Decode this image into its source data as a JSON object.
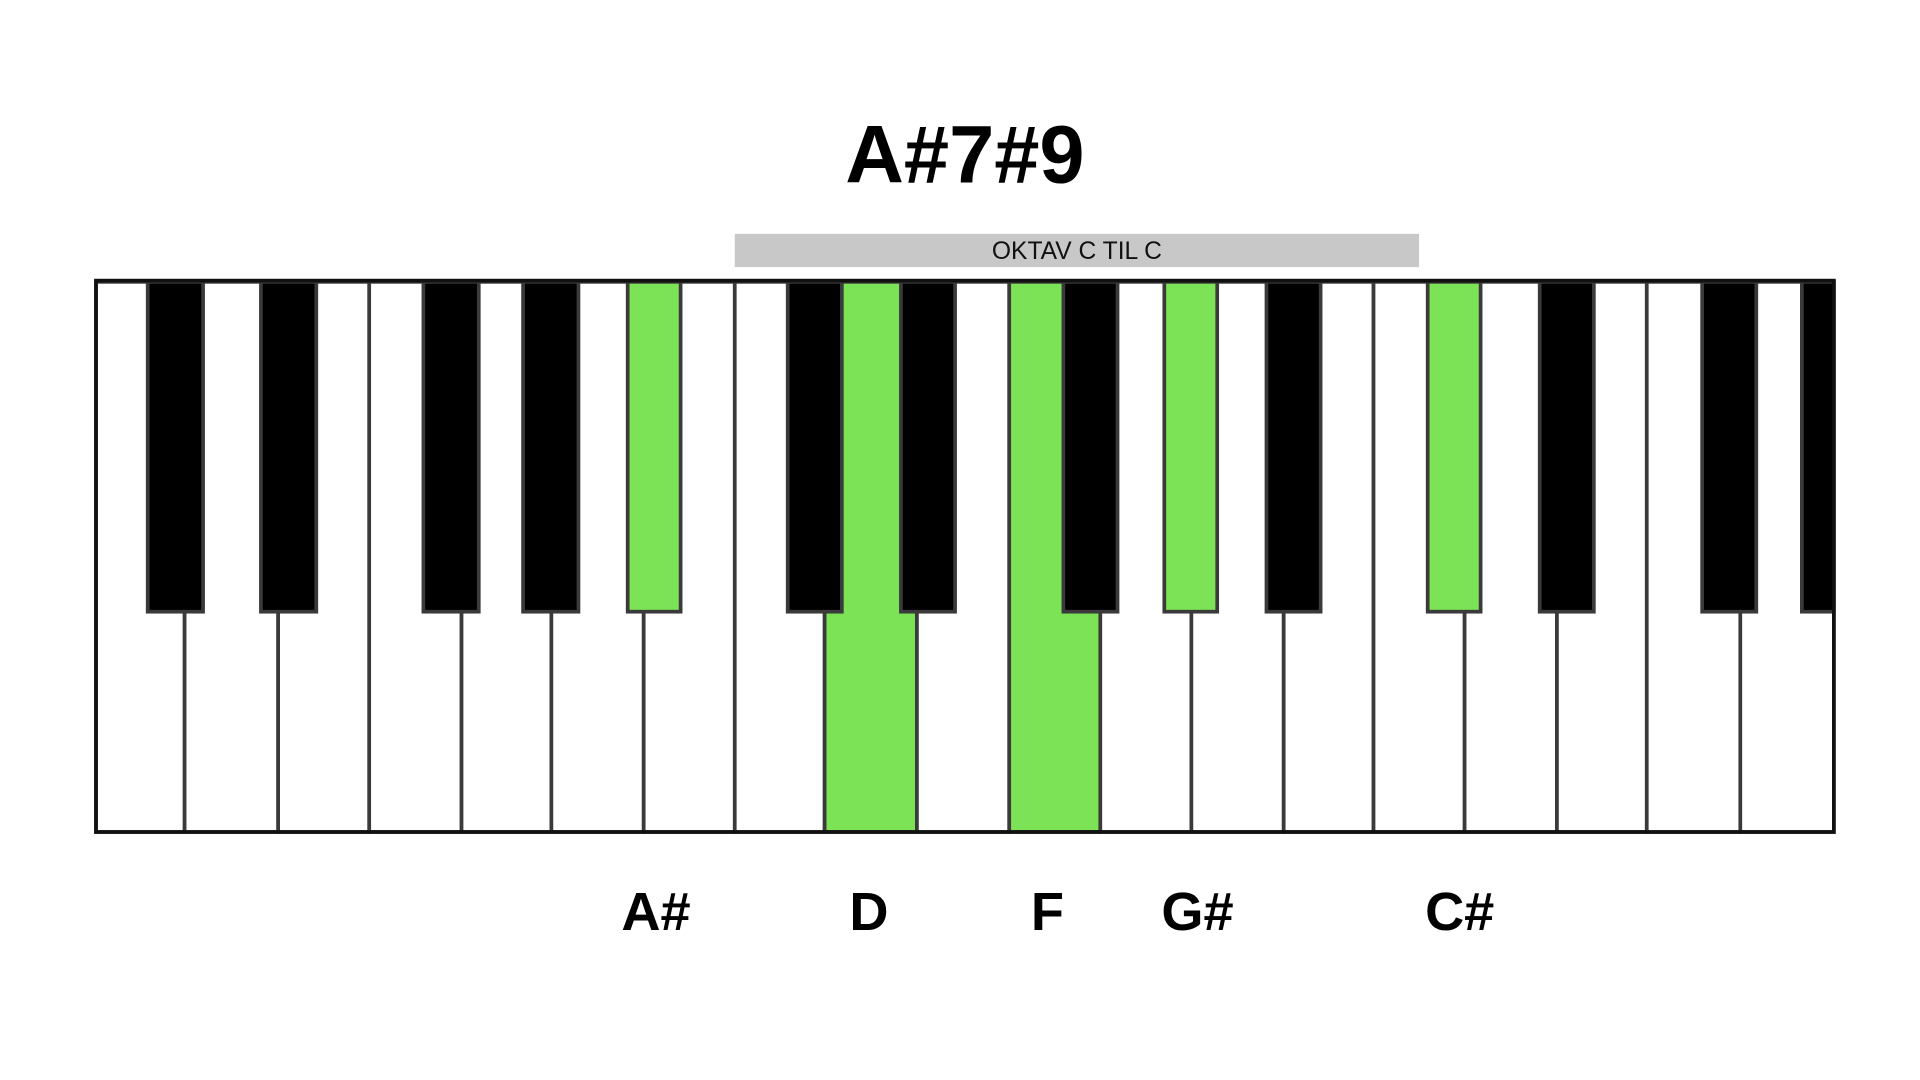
{
  "title": "A#7#9",
  "octave_label": "OKTAV C TIL C",
  "notes": [
    "A#",
    "D",
    "F",
    "G#",
    "C#"
  ]
}
